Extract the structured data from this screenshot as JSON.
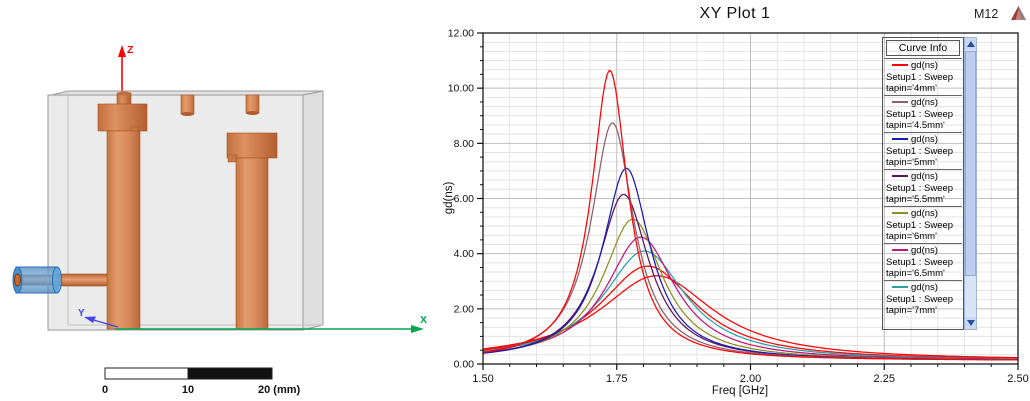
{
  "model_view": {
    "axis_labels": {
      "x": "X",
      "y": "Y",
      "z": "Z"
    },
    "axis_colors": {
      "x": "#00A651",
      "y": "#4444E8",
      "z": "#FF0000"
    },
    "scale_bar": {
      "label_0": "0",
      "label_10": "10",
      "label_20": "20 (mm)"
    },
    "colors": {
      "copper": "#D8895B",
      "cavity_gray": "#E9E9E9",
      "connector_blue": "#5FA8DC"
    }
  },
  "plot": {
    "title": "XY Plot 1",
    "top_right_label": "M12",
    "x_axis": {
      "title": "Freq [GHz]",
      "tick_labels": [
        "1.50",
        "1.75",
        "2.00",
        "2.25",
        "2.50"
      ]
    },
    "y_axis": {
      "title": "gd(ns)",
      "tick_labels": [
        "0.00",
        "2.00",
        "4.00",
        "6.00",
        "8.00",
        "10.00",
        "12.00"
      ]
    },
    "legend": {
      "header": "Curve Info",
      "entries": [
        {
          "color": "#FF0000",
          "line1": "gd(ns)",
          "line2": "Setup1 : Sweep",
          "line3": "tapin='4mm'"
        },
        {
          "color": "#8E5F6E",
          "line1": "gd(ns)",
          "line2": "Setup1 : Sweep",
          "line3": "tapin='4.5mm'"
        },
        {
          "color": "#1B1BB3",
          "line1": "gd(ns)",
          "line2": "Setup1 : Sweep",
          "line3": "tapin='5mm'"
        },
        {
          "color": "#5B155F",
          "line1": "gd(ns)",
          "line2": "Setup1 : Sweep",
          "line3": "tapin='5.5mm'"
        },
        {
          "color": "#8F8F1F",
          "line1": "gd(ns)",
          "line2": "Setup1 : Sweep",
          "line3": "tapin='6mm'"
        },
        {
          "color": "#C2147E",
          "line1": "gd(ns)",
          "line2": "Setup1 : Sweep",
          "line3": "tapin='6.5mm'"
        },
        {
          "color": "#2AA0A6",
          "line1": "gd(ns)",
          "line2": "Setup1 : Sweep",
          "line3": "tapin='7mm'"
        }
      ]
    }
  },
  "chart_data": {
    "type": "line",
    "title": "XY Plot 1",
    "xlabel": "Freq [GHz]",
    "ylabel": "gd(ns)",
    "xlim": [
      1.5,
      2.5
    ],
    "ylim": [
      0.0,
      12.0
    ],
    "x_major_step": 0.25,
    "x_minor_step": 0.05,
    "y_major_step": 2.0,
    "y_minor_step": 0.3333,
    "grid": true,
    "legend_position": "right",
    "series": [
      {
        "name": "tapin='4mm'",
        "quantity": "gd(ns)",
        "color": "#FF0000",
        "peak_freq_GHz": 1.737,
        "peak_gd_ns": 10.65,
        "hwhm_GHz": 0.041,
        "baseline_ns": 0.12
      },
      {
        "name": "tapin='4.5mm'",
        "quantity": "gd(ns)",
        "color": "#8E5F6E",
        "peak_freq_GHz": 1.742,
        "peak_gd_ns": 8.75,
        "hwhm_GHz": 0.048,
        "baseline_ns": 0.12
      },
      {
        "name": "tapin='5mm'",
        "quantity": "gd(ns)",
        "color": "#1B1BB3",
        "peak_freq_GHz": 1.768,
        "peak_gd_ns": 7.1,
        "hwhm_GHz": 0.054,
        "baseline_ns": 0.12
      },
      {
        "name": "tapin='5.5mm'",
        "quantity": "gd(ns)",
        "color": "#5B155F",
        "peak_freq_GHz": 1.763,
        "peak_gd_ns": 6.15,
        "hwhm_GHz": 0.058,
        "baseline_ns": 0.12
      },
      {
        "name": "tapin='6mm'",
        "quantity": "gd(ns)",
        "color": "#8F8F1F",
        "peak_freq_GHz": 1.78,
        "peak_gd_ns": 5.25,
        "hwhm_GHz": 0.068,
        "baseline_ns": 0.12
      },
      {
        "name": "tapin='6.5mm'",
        "quantity": "gd(ns)",
        "color": "#C2147E",
        "peak_freq_GHz": 1.795,
        "peak_gd_ns": 4.6,
        "hwhm_GHz": 0.079,
        "baseline_ns": 0.12
      },
      {
        "name": "tapin='7mm'",
        "quantity": "gd(ns)",
        "color": "#2AA0A6",
        "peak_freq_GHz": 1.802,
        "peak_gd_ns": 4.1,
        "hwhm_GHz": 0.094,
        "baseline_ns": 0.12
      },
      {
        "name": "(unlabeled red curve A)",
        "quantity": "gd(ns)",
        "color": "#FF0000",
        "peak_freq_GHz": 1.808,
        "peak_gd_ns": 3.55,
        "hwhm_GHz": 0.11,
        "baseline_ns": 0.12
      },
      {
        "name": "(unlabeled red curve B)",
        "quantity": "gd(ns)",
        "color": "#FF0000",
        "peak_freq_GHz": 1.824,
        "peak_gd_ns": 3.2,
        "hwhm_GHz": 0.13,
        "baseline_ns": 0.12
      }
    ]
  }
}
